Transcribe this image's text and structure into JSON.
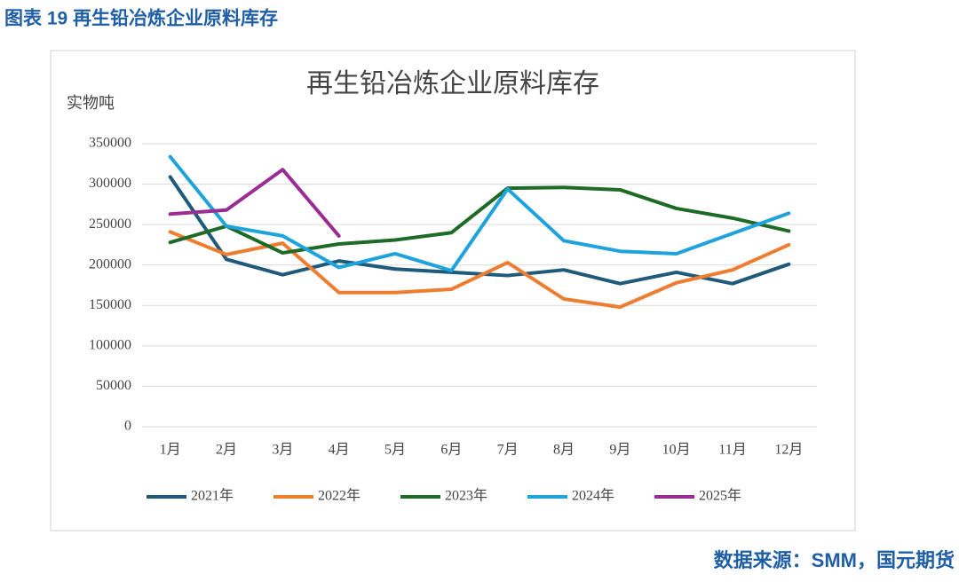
{
  "figure_title": "图表 19 再生铅冶炼企业原料库存",
  "source": "数据来源：SMM，国元期货",
  "chart_data": {
    "type": "line",
    "title": "再生铅冶炼企业原料库存",
    "y_label": "实物吨",
    "categories": [
      "1月",
      "2月",
      "3月",
      "4月",
      "5月",
      "6月",
      "7月",
      "8月",
      "9月",
      "10月",
      "11月",
      "12月"
    ],
    "series": [
      {
        "name": "2021年",
        "color": "#1f5a7a",
        "values": [
          309000,
          207000,
          188000,
          205000,
          195000,
          191000,
          187000,
          194000,
          177000,
          191000,
          177000,
          201000
        ]
      },
      {
        "name": "2022年",
        "color": "#ed7d31",
        "values": [
          241000,
          213000,
          227000,
          166000,
          166000,
          170000,
          203000,
          158000,
          148000,
          178000,
          194000,
          225000
        ]
      },
      {
        "name": "2023年",
        "color": "#1e6b27",
        "values": [
          228000,
          248000,
          215000,
          226000,
          231000,
          240000,
          295000,
          296000,
          293000,
          270000,
          258000,
          242000
        ]
      },
      {
        "name": "2024年",
        "color": "#1fa3dc",
        "values": [
          334000,
          248000,
          236000,
          197000,
          214000,
          193000,
          294000,
          230000,
          217000,
          214000,
          239000,
          264000
        ]
      },
      {
        "name": "2025年",
        "color": "#9b2c93",
        "values": [
          263000,
          268000,
          318000,
          236000,
          null,
          null,
          null,
          null,
          null,
          null,
          null,
          null
        ]
      }
    ],
    "ylim": [
      0,
      350000
    ],
    "yticks": [
      0,
      50000,
      100000,
      150000,
      200000,
      250000,
      300000,
      350000
    ],
    "grid": true,
    "legend": "bottom"
  }
}
